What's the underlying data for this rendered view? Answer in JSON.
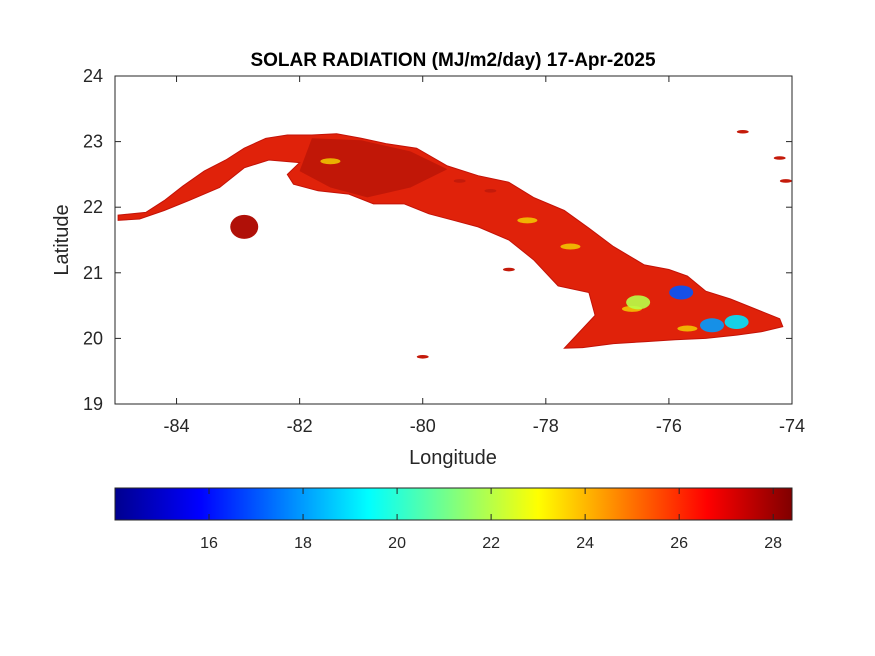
{
  "title": "SOLAR RADIATION (MJ/m2/day) 17-Apr-2025",
  "xlabel": "Longitude",
  "ylabel": "Latitude",
  "map": {
    "xlim": [
      -85,
      -74
    ],
    "ylim": [
      19,
      24
    ],
    "xticks": [
      -84,
      -82,
      -80,
      -78,
      -76,
      -74
    ],
    "yticks": [
      19,
      20,
      21,
      22,
      23,
      24
    ],
    "region_fill_color": "#e0220a",
    "island_of_youth_center": [
      -82.9,
      21.7
    ],
    "east_highlights": [
      {
        "lon": -75.8,
        "lat": 20.7,
        "value": 17
      },
      {
        "lon": -75.3,
        "lat": 20.2,
        "value": 18
      },
      {
        "lon": -74.9,
        "lat": 20.25,
        "value": 19
      },
      {
        "lon": -76.5,
        "lat": 20.55,
        "value": 22
      }
    ]
  },
  "colorbar": {
    "min": 14,
    "max": 28.4,
    "ticks": [
      16,
      18,
      20,
      22,
      24,
      26,
      28
    ],
    "colormap": "jet"
  }
}
